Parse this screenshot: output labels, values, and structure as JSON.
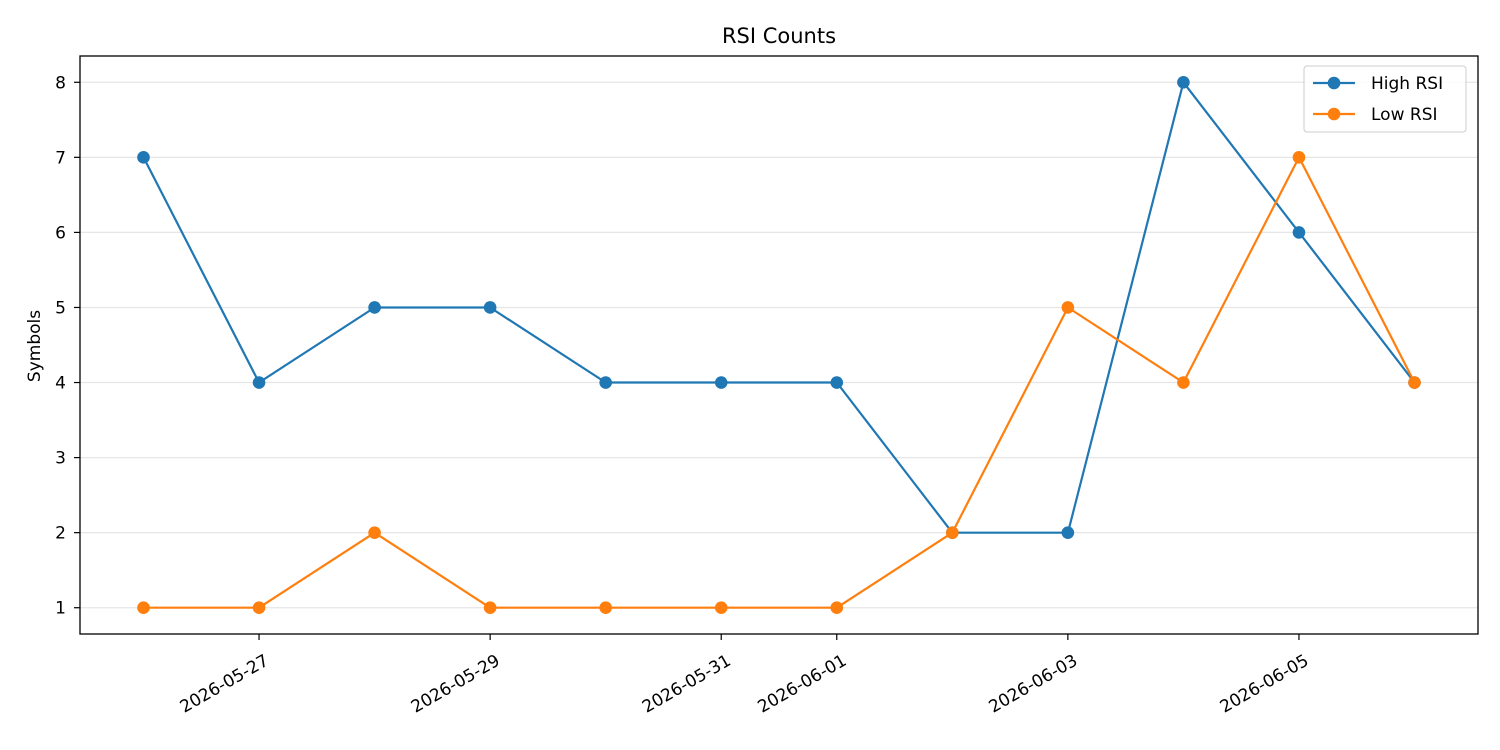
{
  "chart_data": {
    "type": "line",
    "title": "RSI Counts",
    "xlabel": "",
    "ylabel": "Symbols",
    "x": [
      "2026-05-26",
      "2026-05-27",
      "2026-05-28",
      "2026-05-29",
      "2026-05-30",
      "2026-05-31",
      "2026-06-01",
      "2026-06-02",
      "2026-06-03",
      "2026-06-04",
      "2026-06-05",
      "2026-06-06"
    ],
    "x_tick_labels": [
      "2026-05-27",
      "2026-05-29",
      "2026-05-31",
      "2026-06-01",
      "2026-06-03",
      "2026-06-05"
    ],
    "series": [
      {
        "name": "High RSI",
        "color": "#1f77b4",
        "values": [
          7,
          4,
          5,
          5,
          4,
          4,
          4,
          2,
          2,
          8,
          6,
          4
        ]
      },
      {
        "name": "Low RSI",
        "color": "#ff7f0e",
        "values": [
          1,
          1,
          2,
          1,
          1,
          1,
          1,
          2,
          5,
          4,
          7,
          4
        ]
      }
    ],
    "yticks": [
      1,
      2,
      3,
      4,
      5,
      6,
      7,
      8
    ],
    "ylim": [
      0.65,
      8.35
    ],
    "grid": "horizontal",
    "legend_position": "top-right"
  }
}
